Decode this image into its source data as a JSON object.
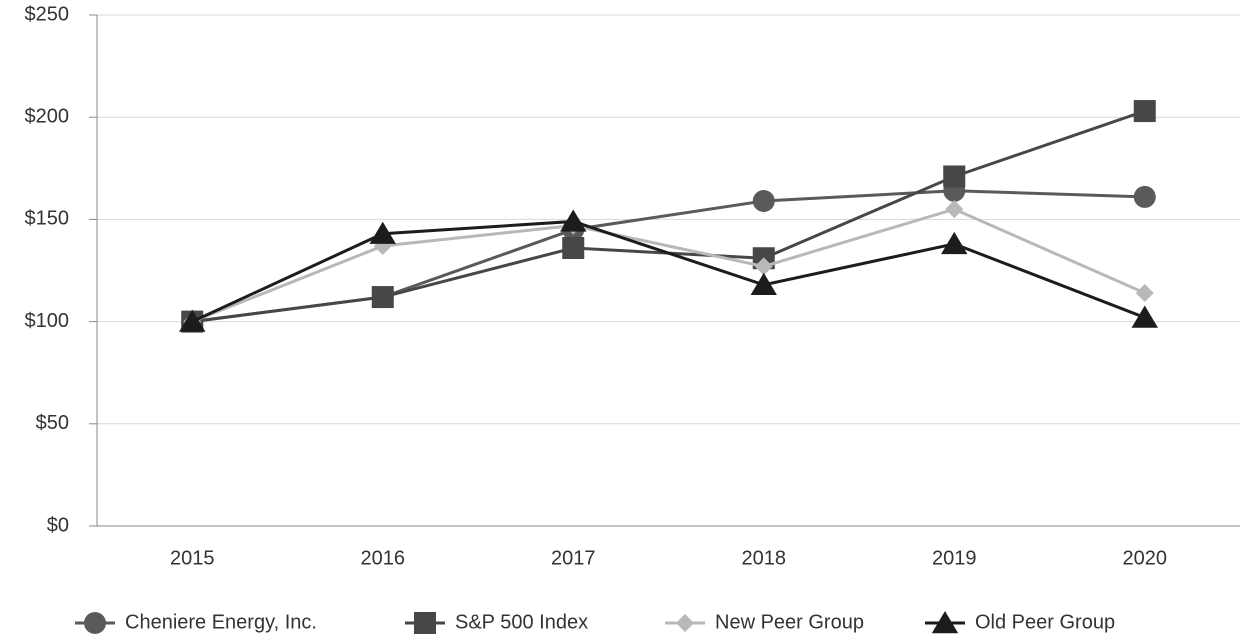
{
  "chart_data": {
    "type": "line",
    "categories": [
      "2015",
      "2016",
      "2017",
      "2018",
      "2019",
      "2020"
    ],
    "series": [
      {
        "name": "Cheniere Energy, Inc.",
        "color": "#5a5a5a",
        "marker": "circle",
        "values": [
          100,
          112,
          145,
          159,
          164,
          161
        ]
      },
      {
        "name": "S&P 500 Index",
        "color": "#474747",
        "marker": "square",
        "values": [
          100,
          112,
          136,
          131,
          171,
          203
        ]
      },
      {
        "name": "New Peer Group",
        "color": "#b8b8b8",
        "marker": "diamond",
        "values": [
          100,
          137,
          147,
          127,
          155,
          114
        ]
      },
      {
        "name": "Old Peer Group",
        "color": "#1c1c1c",
        "marker": "triangle",
        "values": [
          100,
          143,
          149,
          118,
          138,
          102
        ]
      }
    ],
    "ylim": [
      0,
      250
    ],
    "yticks": [
      {
        "value": 0,
        "label": "$0"
      },
      {
        "value": 50,
        "label": "$50"
      },
      {
        "value": 100,
        "label": "$100"
      },
      {
        "value": 150,
        "label": "$150"
      },
      {
        "value": 200,
        "label": "$200"
      },
      {
        "value": 250,
        "label": "$250"
      }
    ],
    "grid": true,
    "legend": "bottom"
  }
}
